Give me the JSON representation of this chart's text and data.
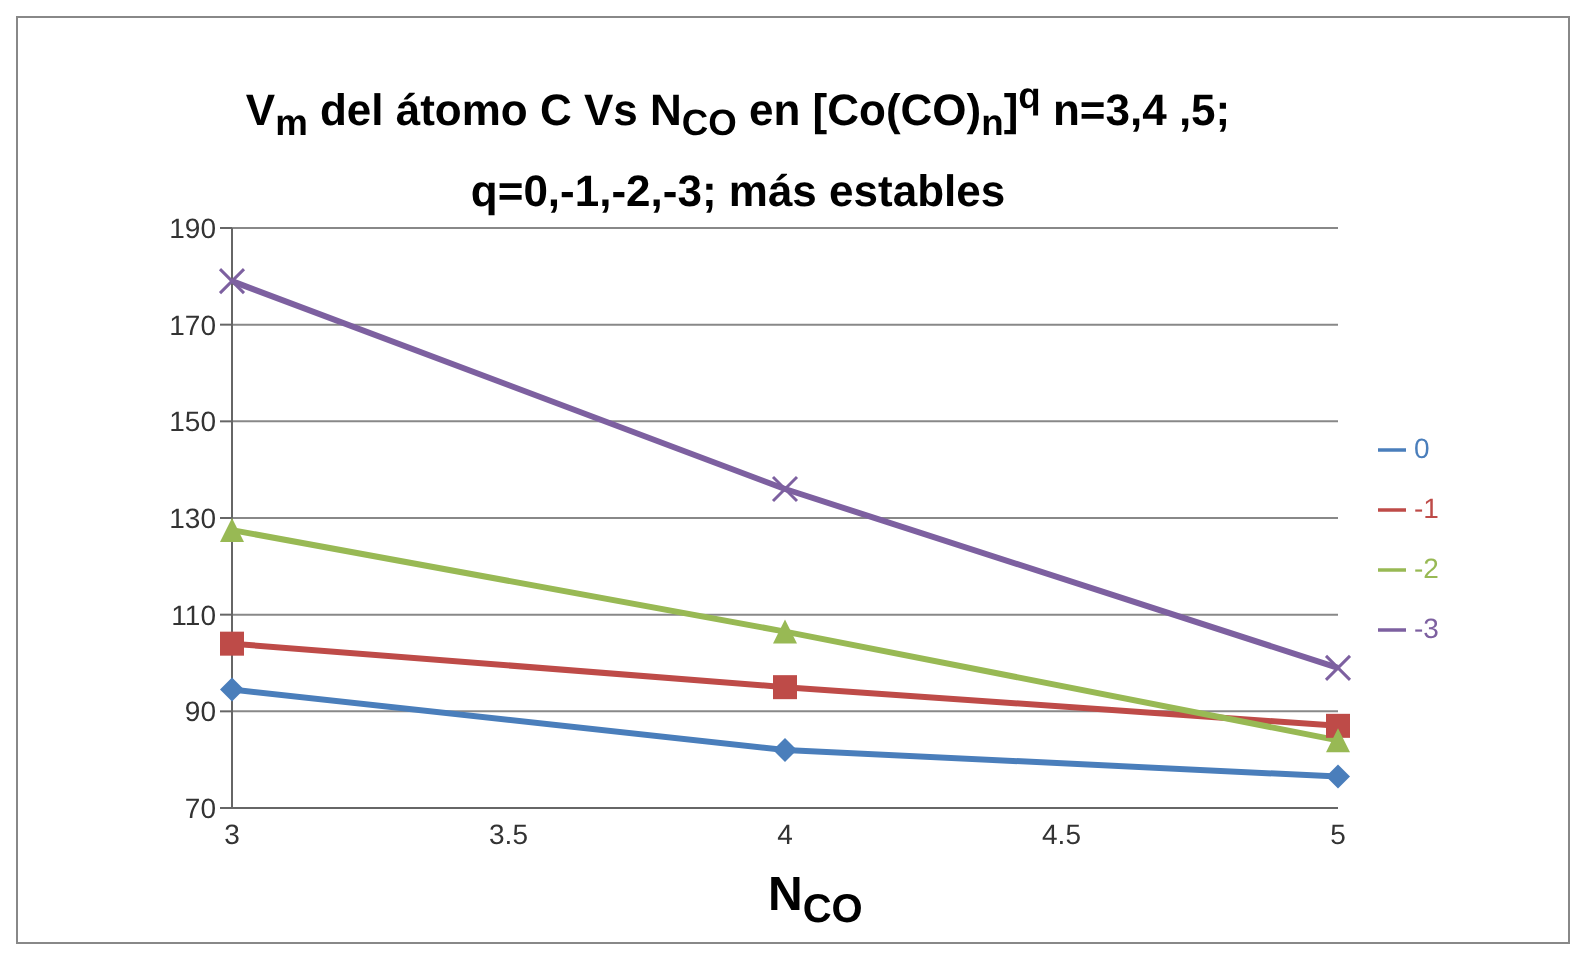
{
  "chart_data": {
    "type": "line",
    "title": "V$_{m}$ del átomo C Vs N$_{CO}$ en [Co(CO)$_{n}$]$^{q}$ n=3,4 ,5; q=0,-1,-2,-3; más estables",
    "xlabel": "N$_{CO}$",
    "x": [
      3,
      4,
      5
    ],
    "series": [
      {
        "name": "0",
        "color": "#4a7ebb",
        "marker": "diamond",
        "values": [
          94.5,
          82,
          76.5
        ]
      },
      {
        "name": "-1",
        "color": "#be4b48",
        "marker": "square",
        "values": [
          104,
          95,
          87
        ]
      },
      {
        "name": "-2",
        "color": "#98b954",
        "marker": "triangle",
        "values": [
          127.5,
          106.5,
          84
        ]
      },
      {
        "name": "-3",
        "color": "#7d60a0",
        "marker": "cross",
        "values": [
          179,
          136,
          99
        ]
      }
    ],
    "xlim": [
      3,
      5
    ],
    "xticks": [
      3,
      3.5,
      4,
      4.5,
      5
    ],
    "ylim": [
      70,
      190
    ],
    "yticks": [
      70,
      90,
      110,
      130,
      150,
      170,
      190
    ],
    "grid": "y",
    "legend": "right"
  }
}
